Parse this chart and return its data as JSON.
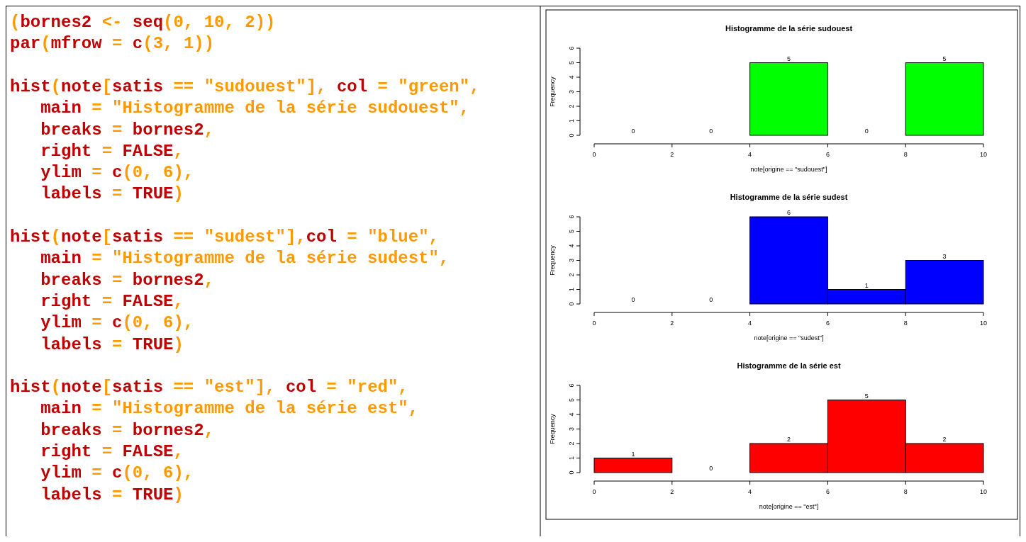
{
  "chart_data": [
    {
      "type": "other",
      "annotations": [
        "(bornes2 <- seq(0, 10, 2))",
        "par(mfrow = c(3, 1))",
        "hist(note[satis == \"sudouest\"], col = \"green\",",
        "   main = \"Histogramme de la série sudouest\",",
        "   breaks = bornes2,",
        "   right = FALSE,",
        "   ylim = c(0, 6),",
        "   labels = TRUE)",
        "hist(note[satis == \"sudest\"],col = \"blue\",",
        "   main = \"Histogramme de la série sudest\",",
        "   breaks = bornes2,",
        "   right = FALSE,",
        "   ylim = c(0, 6),",
        "   labels = TRUE)",
        "hist(note[satis == \"est\"], col = \"red\",",
        "   main = \"Histogramme de la série est\",",
        "   breaks = bornes2,",
        "   right = FALSE,",
        "   ylim = c(0, 6),",
        "   labels = TRUE)"
      ]
    },
    {
      "type": "histogram",
      "title": "Histogramme de la série sudouest",
      "xlabel": "note[origine == \"sudouest\"]",
      "ylabel": "Frequency",
      "bins": [
        0,
        2,
        4,
        6,
        8,
        10
      ],
      "values": [
        0,
        0,
        5,
        0,
        5
      ],
      "color": "#00ff00",
      "xlim": [
        0,
        10
      ],
      "xticks": [
        0,
        2,
        4,
        6,
        8,
        10
      ],
      "ylim": [
        0,
        6
      ],
      "yticks": [
        0,
        1,
        2,
        3,
        4,
        5,
        6
      ],
      "data_labels": true
    },
    {
      "type": "histogram",
      "title": "Histogramme de la série sudest",
      "xlabel": "note[origine == \"sudest\"]",
      "ylabel": "Frequency",
      "bins": [
        0,
        2,
        4,
        6,
        8,
        10
      ],
      "values": [
        0,
        0,
        6,
        1,
        3
      ],
      "color": "#0000ff",
      "xlim": [
        0,
        10
      ],
      "xticks": [
        0,
        2,
        4,
        6,
        8,
        10
      ],
      "ylim": [
        0,
        6
      ],
      "yticks": [
        0,
        1,
        2,
        3,
        4,
        5,
        6
      ],
      "data_labels": true
    },
    {
      "type": "histogram",
      "title": "Histogramme de la série est",
      "xlabel": "note[origine == \"est\"]",
      "ylabel": "Frequency",
      "bins": [
        0,
        2,
        4,
        6,
        8,
        10
      ],
      "values": [
        1,
        0,
        2,
        5,
        2
      ],
      "color": "#ff0000",
      "xlim": [
        0,
        10
      ],
      "xticks": [
        0,
        2,
        4,
        6,
        8,
        10
      ],
      "ylim": [
        0,
        6
      ],
      "yticks": [
        0,
        1,
        2,
        3,
        4,
        5,
        6
      ],
      "data_labels": true
    }
  ]
}
